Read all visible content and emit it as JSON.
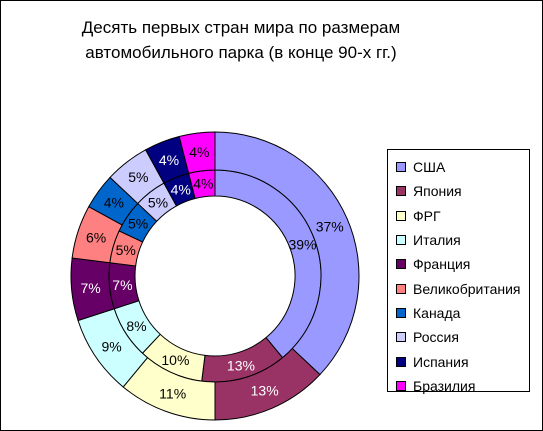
{
  "chart_data": {
    "type": "pie",
    "subtype": "double-doughnut",
    "title_lines": [
      "Десять первых стран мира по размерам",
      "автомобильного парка (в конце 90-х гг.)"
    ],
    "categories": [
      "США",
      "Япония",
      "ФРГ",
      "Италия",
      "Франция",
      "Великобритания",
      "Канада",
      "Россия",
      "Испания",
      "Бразилия"
    ],
    "colors": [
      "#9999FF",
      "#993366",
      "#FFFFCC",
      "#CCFFFF",
      "#660066",
      "#FF8080",
      "#0066CC",
      "#CCCCFF",
      "#000080",
      "#FF00FF"
    ],
    "series": [
      {
        "ring": "inner",
        "values": [
          39,
          13,
          10,
          8,
          7,
          5,
          5,
          5,
          4,
          4
        ],
        "labels": [
          "39%",
          "13%",
          "10%",
          "8%",
          "7%",
          "5%",
          "5%",
          "5%",
          "4%",
          "4%"
        ]
      },
      {
        "ring": "outer",
        "values": [
          37,
          13,
          11,
          9,
          7,
          6,
          4,
          5,
          4,
          4
        ],
        "labels": [
          "37%",
          "13%",
          "11%",
          "9%",
          "7%",
          "6%",
          "4%",
          "5%",
          "4%",
          "4%"
        ]
      }
    ],
    "legend_position": "right"
  }
}
